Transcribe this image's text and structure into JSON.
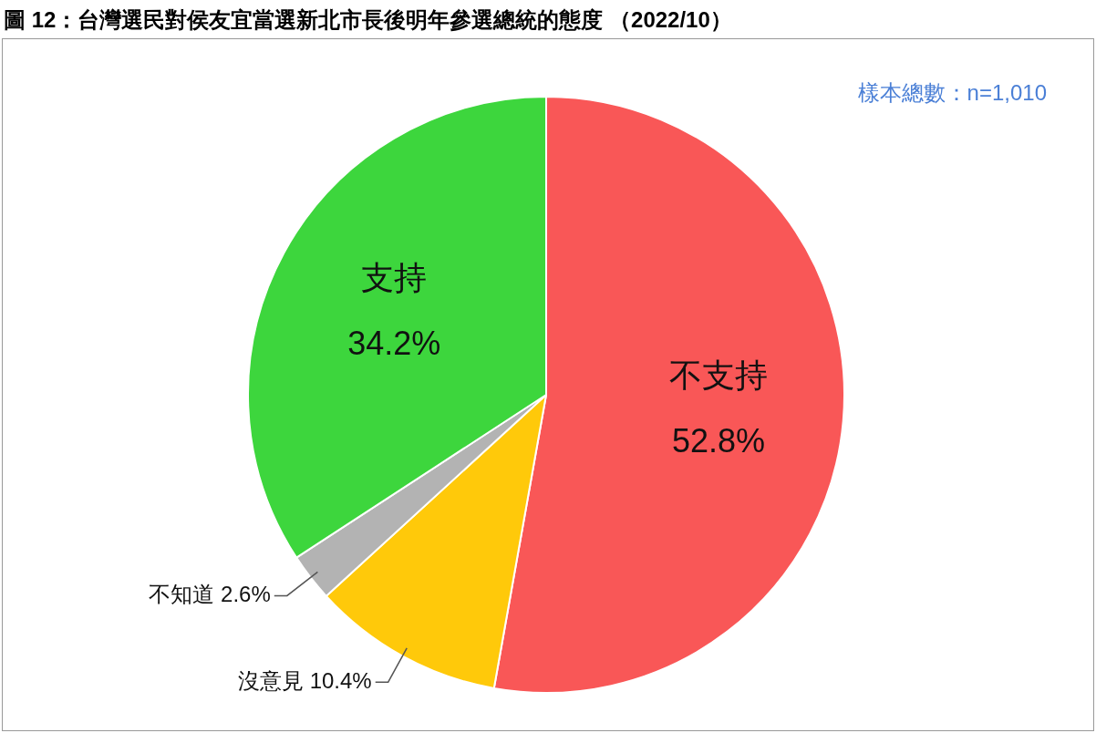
{
  "chart_data": {
    "type": "pie",
    "title": "圖 12：台灣選民對侯友宜當選新北市長後明年參選總統的態度 （2022/10）",
    "categories": [
      "不支持",
      "沒意見",
      "不知道",
      "支持"
    ],
    "values": [
      52.8,
      10.4,
      2.6,
      34.2
    ],
    "colors": [
      "#f95757",
      "#ffc90a",
      "#b3b3b3",
      "#3dd63d"
    ],
    "value_labels": [
      "52.8%",
      "10.4%",
      "2.6%",
      "34.2%"
    ],
    "legend": false,
    "annotations": [
      "樣本總數：n=1,010"
    ]
  }
}
